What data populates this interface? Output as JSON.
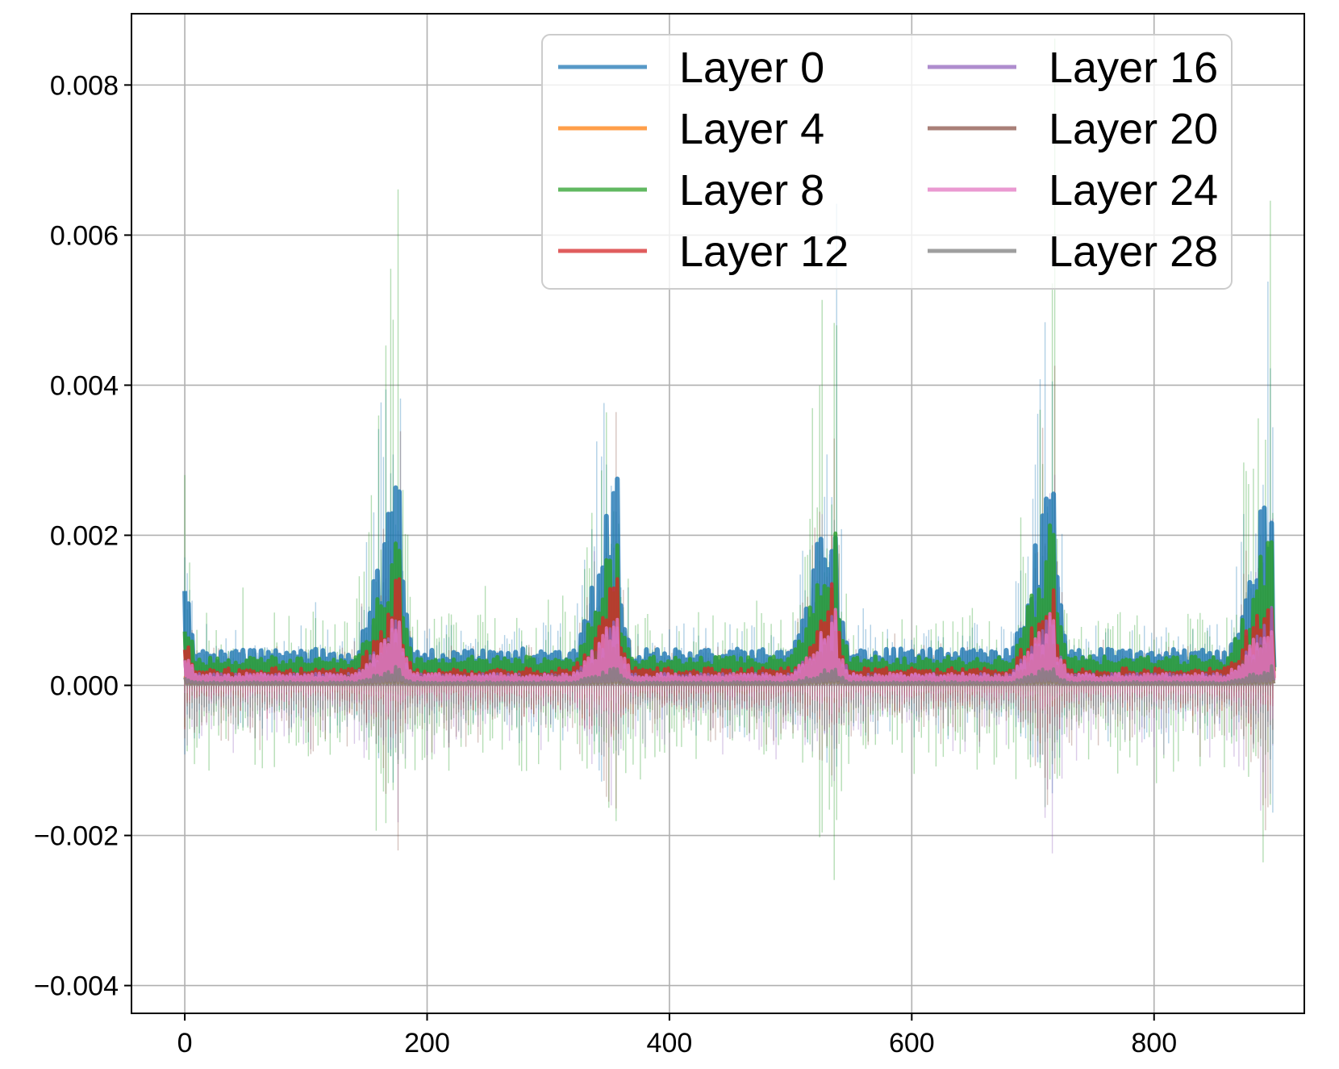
{
  "chart_data": {
    "type": "line",
    "title": "",
    "xlabel": "",
    "ylabel": "",
    "xlim": [
      -44,
      924
    ],
    "ylim": [
      -0.00437,
      0.00895
    ],
    "xticks": [
      0,
      200,
      400,
      600,
      800
    ],
    "xtick_labels": [
      "0",
      "200",
      "400",
      "600",
      "800"
    ],
    "yticks": [
      -0.004,
      -0.002,
      0.0,
      0.002,
      0.004,
      0.006,
      0.008
    ],
    "ytick_labels": [
      "−0.004",
      "−0.002",
      "0.000",
      "0.002",
      "0.004",
      "0.006",
      "0.008"
    ],
    "grid": true,
    "legend": {
      "placement": "top-right",
      "columns": 2
    },
    "n_points": 900,
    "period": 180,
    "series": [
      {
        "name": "Layer 0",
        "color": "#1f77b4",
        "thick_max": 0.00335,
        "thick_base": 0.00028,
        "band_max": 0.0071,
        "band_min": -0.0022,
        "thick_width": 6.0,
        "band_alpha": 0.35
      },
      {
        "name": "Layer 4",
        "color": "#ff7f0e",
        "thick_max": 0.0003,
        "thick_base": 5e-05,
        "band_max": 0.0007,
        "band_min": -0.0006,
        "thick_width": 3.0,
        "band_alpha": 0.35
      },
      {
        "name": "Layer 8",
        "color": "#2ca02c",
        "thick_max": 0.00245,
        "thick_base": 0.0003,
        "band_max": 0.0083,
        "band_min": -0.0037,
        "thick_width": 5.0,
        "band_alpha": 0.35
      },
      {
        "name": "Layer 12",
        "color": "#d62728",
        "thick_max": 0.0017,
        "thick_base": 0.0001,
        "band_max": 0.0019,
        "band_min": -0.0012,
        "thick_width": 4.5,
        "band_alpha": 0.4
      },
      {
        "name": "Layer 16",
        "color": "#9467bd",
        "thick_max": 0.0011,
        "thick_base": 0.0001,
        "band_max": 0.0031,
        "band_min": -0.0027,
        "thick_width": 3.5,
        "band_alpha": 0.35
      },
      {
        "name": "Layer 20",
        "color": "#8c564b",
        "thick_max": 0.0009,
        "thick_base": 8e-05,
        "band_max": 0.0045,
        "band_min": -0.0025,
        "thick_width": 3.5,
        "band_alpha": 0.35
      },
      {
        "name": "Layer 24",
        "color": "#e377c2",
        "thick_max": 0.0011,
        "thick_base": 0.0001,
        "band_max": 0.0014,
        "band_min": -0.0008,
        "thick_width": 4.0,
        "band_alpha": 0.35
      },
      {
        "name": "Layer 28",
        "color": "#7f7f7f",
        "thick_max": 0.0003,
        "thick_base": 4e-05,
        "band_max": 0.0004,
        "band_min": -0.0003,
        "thick_width": 4.0,
        "band_alpha": 0.35
      }
    ]
  }
}
